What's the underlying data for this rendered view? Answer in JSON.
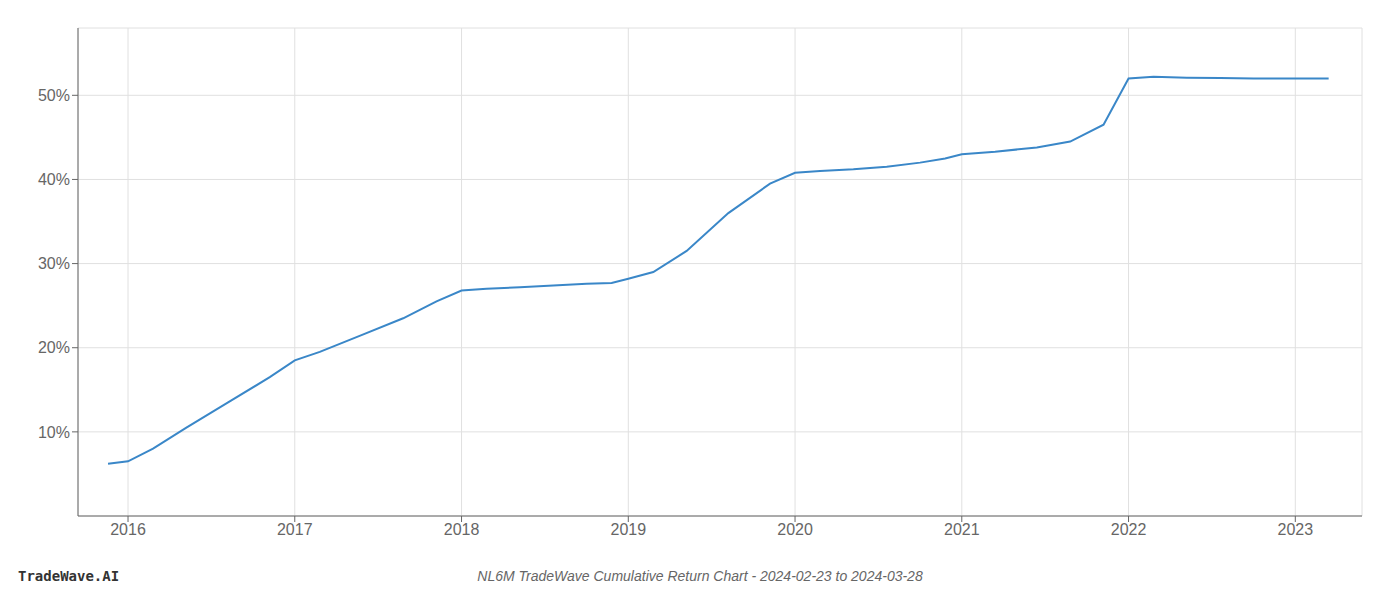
{
  "chart_data": {
    "type": "line",
    "title": "NL6M TradeWave Cumulative Return Chart - 2024-02-23 to 2024-03-28",
    "annotations": [
      "TradeWave.AI"
    ],
    "x": [
      2015.88,
      2016.0,
      2016.15,
      2016.35,
      2016.6,
      2016.85,
      2017.0,
      2017.15,
      2017.4,
      2017.65,
      2017.85,
      2018.0,
      2018.15,
      2018.35,
      2018.55,
      2018.75,
      2018.9,
      2019.0,
      2019.15,
      2019.35,
      2019.6,
      2019.85,
      2020.0,
      2020.15,
      2020.35,
      2020.55,
      2020.75,
      2020.9,
      2021.0,
      2021.2,
      2021.45,
      2021.65,
      2021.85,
      2022.0,
      2022.15,
      2022.35,
      2022.55,
      2022.75,
      2023.0,
      2023.2
    ],
    "values": [
      6.2,
      6.5,
      8.0,
      10.5,
      13.5,
      16.5,
      18.5,
      19.5,
      21.5,
      23.5,
      25.5,
      26.8,
      27.0,
      27.2,
      27.4,
      27.6,
      27.7,
      28.2,
      29.0,
      31.5,
      36.0,
      39.5,
      40.8,
      41.0,
      41.2,
      41.5,
      42.0,
      42.5,
      43.0,
      43.3,
      43.8,
      44.5,
      46.5,
      52.0,
      52.2,
      52.1,
      52.05,
      52.0,
      52.0,
      52.0
    ],
    "color": "#3a87c8",
    "xlim": [
      2015.7,
      2023.4
    ],
    "ylim": [
      0,
      58
    ],
    "xticks": [
      2016,
      2017,
      2018,
      2019,
      2020,
      2021,
      2022,
      2023
    ],
    "yticks": [
      {
        "value": 10,
        "label": "10%"
      },
      {
        "value": 20,
        "label": "20%"
      },
      {
        "value": 30,
        "label": "30%"
      },
      {
        "value": 40,
        "label": "40%"
      },
      {
        "value": 50,
        "label": "50%"
      }
    ],
    "grid": true
  }
}
